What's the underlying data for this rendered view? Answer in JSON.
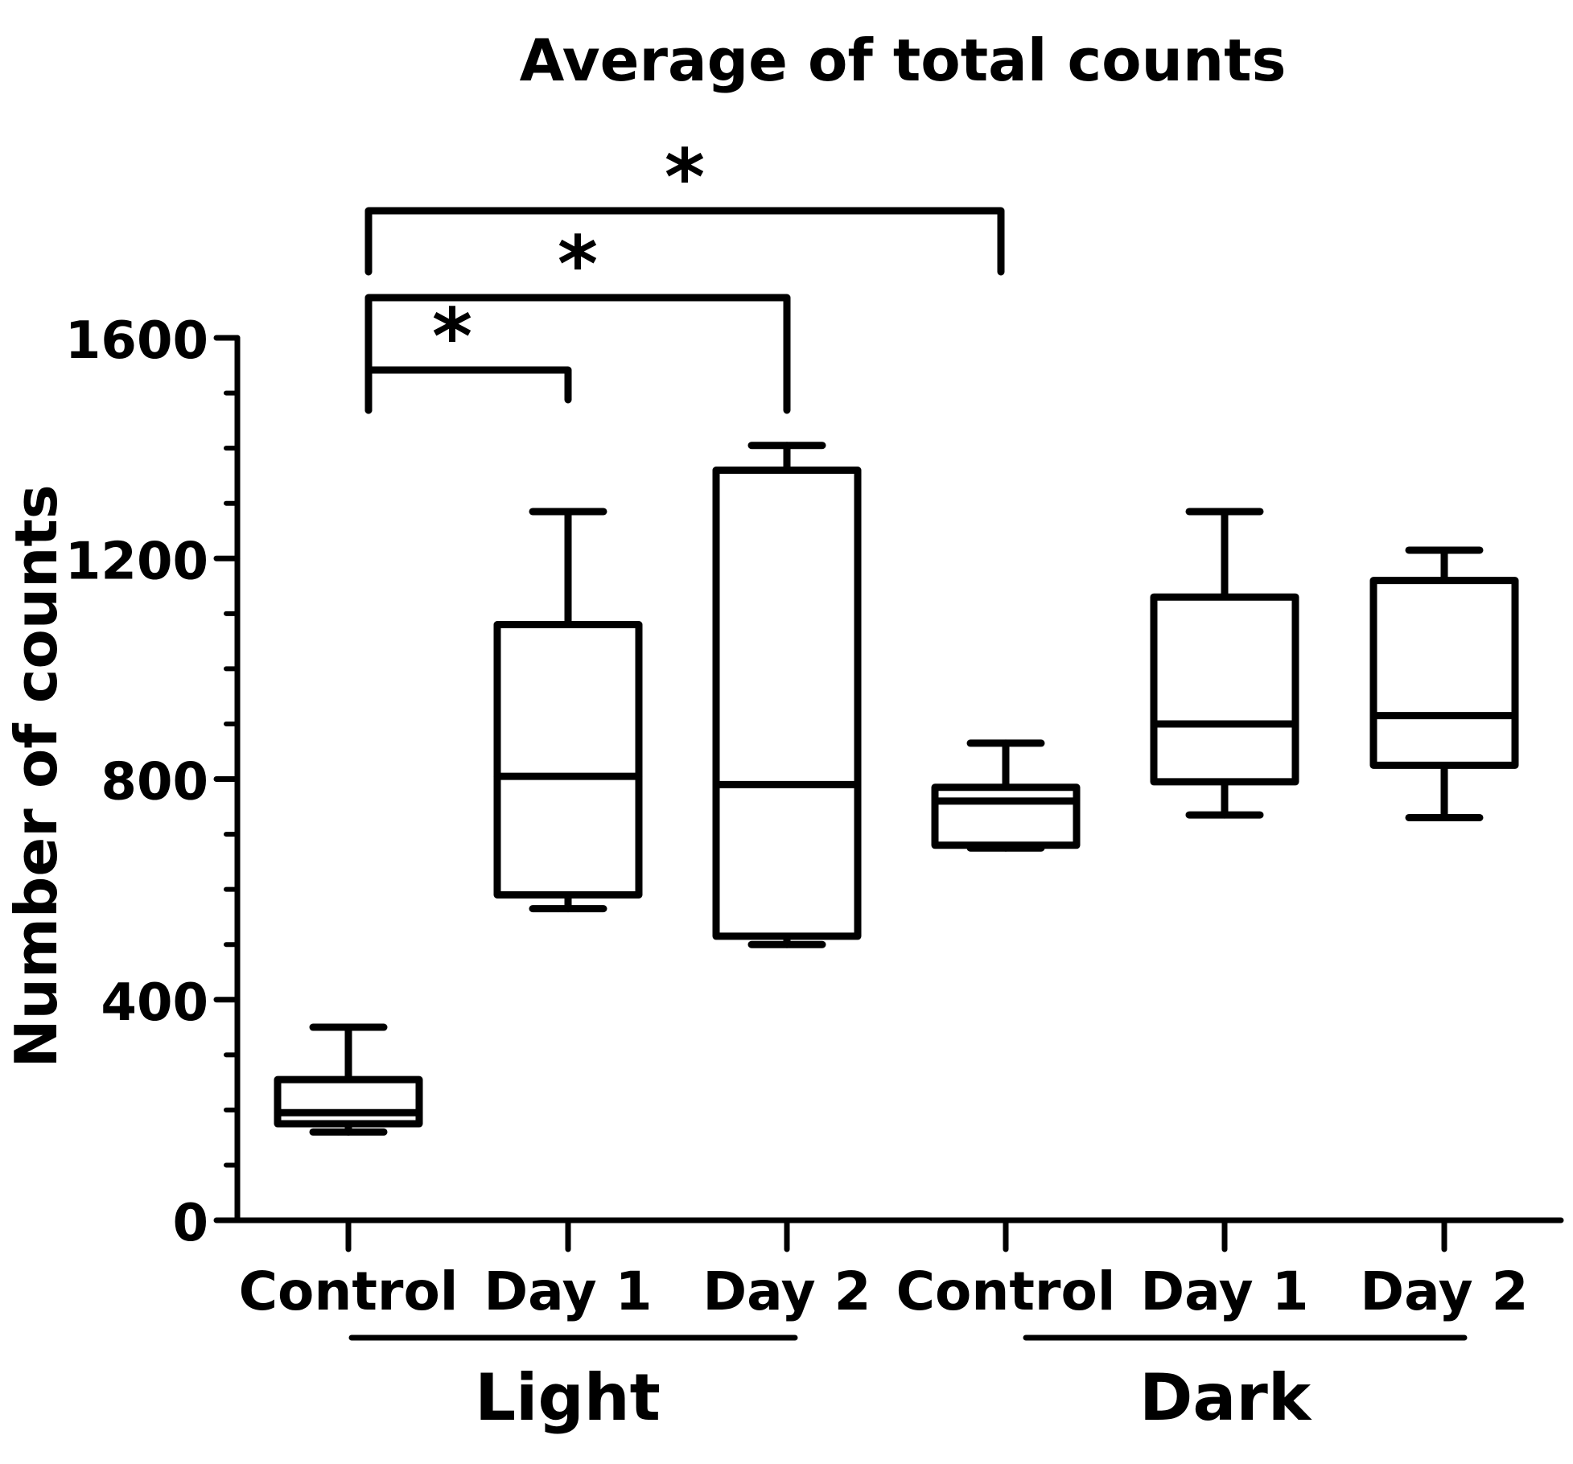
{
  "chart_data": {
    "type": "box",
    "title": "Average of total counts",
    "xlabel": "",
    "ylabel": "Number of counts",
    "ylim": [
      0,
      1600
    ],
    "yticks": [
      0,
      400,
      800,
      1200,
      1600
    ],
    "ytick_labels": [
      "0",
      "400",
      "800",
      "1200",
      "1600"
    ],
    "minor_tick_step": 100,
    "categories": [
      "Control",
      "Day 1",
      "Day 2",
      "Control",
      "Day 1",
      "Day 2"
    ],
    "groups": [
      {
        "label": "Light",
        "from": 0,
        "to": 2
      },
      {
        "label": "Dark",
        "from": 3,
        "to": 5
      }
    ],
    "boxes": [
      {
        "min": 160,
        "q1": 175,
        "median": 195,
        "q3": 255,
        "max": 350
      },
      {
        "min": 565,
        "q1": 590,
        "median": 805,
        "q3": 1080,
        "max": 1285
      },
      {
        "min": 500,
        "q1": 515,
        "median": 790,
        "q3": 1360,
        "max": 1405
      },
      {
        "min": 675,
        "q1": 680,
        "median": 760,
        "q3": 785,
        "max": 865
      },
      {
        "min": 735,
        "q1": 795,
        "median": 900,
        "q3": 1130,
        "max": 1285
      },
      {
        "min": 730,
        "q1": 825,
        "median": 915,
        "q3": 1160,
        "max": 1215
      }
    ],
    "significance": [
      {
        "from": 0,
        "to": 1,
        "label": "*"
      },
      {
        "from": 0,
        "to": 2,
        "label": "*"
      },
      {
        "from": 0,
        "to": 3,
        "label": "*"
      }
    ]
  }
}
